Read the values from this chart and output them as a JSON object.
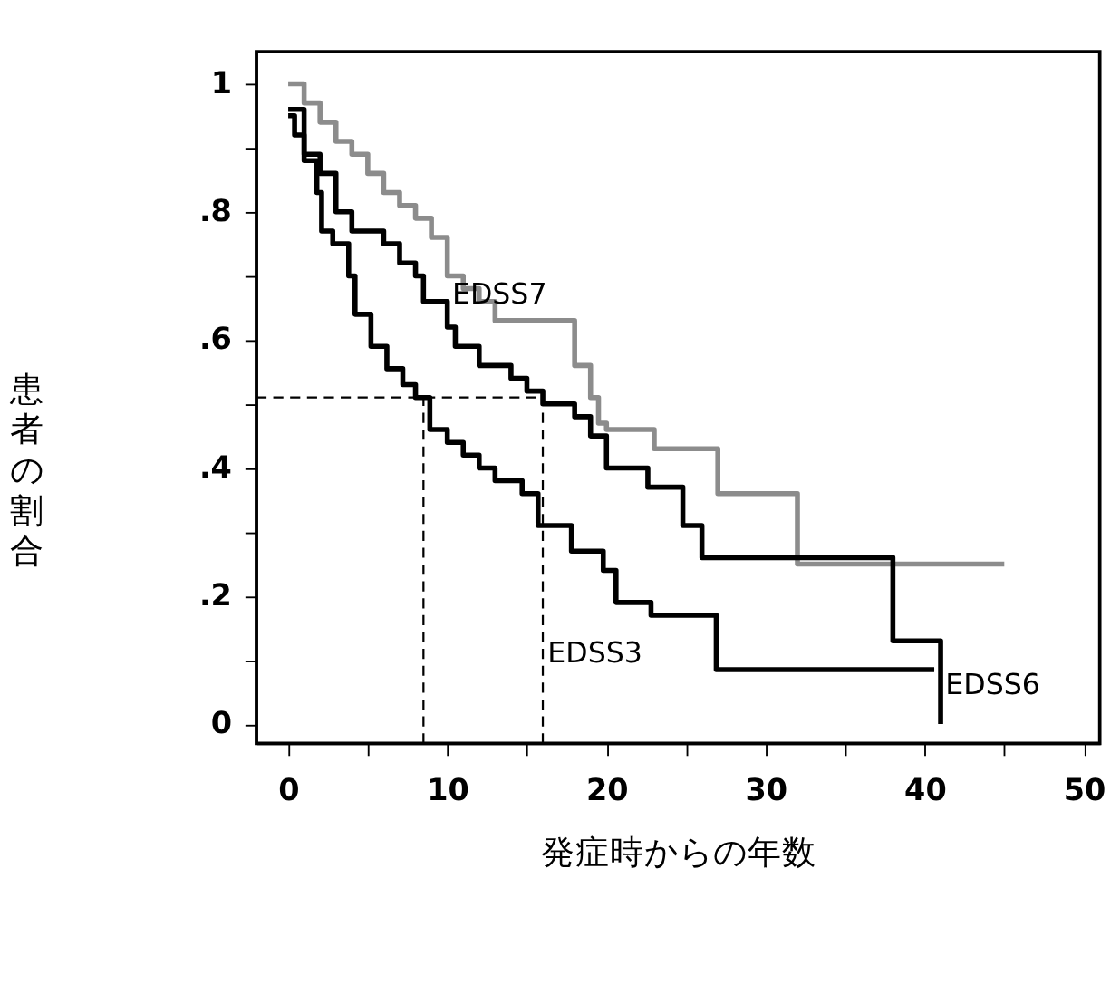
{
  "chart_data": {
    "type": "step",
    "xlabel": "発症時からの年数",
    "ylabel": "患者の割合",
    "xlim": [
      -2,
      51
    ],
    "ylim": [
      -0.03,
      1.05
    ],
    "xticks": [
      0,
      {
        "value": 5,
        "label": null
      },
      10,
      {
        "value": 15,
        "label": null
      },
      20,
      {
        "value": 25,
        "label": null
      },
      30,
      {
        "value": 35,
        "label": null
      },
      40,
      {
        "value": 45,
        "label": null
      },
      50
    ],
    "yticks": [
      0,
      {
        "value": 0.1,
        "label": null
      },
      {
        "value": 0.2,
        "label": ".2"
      },
      {
        "value": 0.3,
        "label": null
      },
      {
        "value": 0.4,
        "label": ".4"
      },
      {
        "value": 0.5,
        "label": null
      },
      {
        "value": 0.6,
        "label": ".6"
      },
      {
        "value": 0.7,
        "label": null
      },
      {
        "value": 0.8,
        "label": ".8"
      },
      {
        "value": 0.9,
        "label": null
      },
      1
    ],
    "grid": false,
    "marker": "none",
    "line_style": "solid",
    "series": [
      {
        "color": "#8c8c8c",
        "x": [
          0,
          1,
          2,
          3,
          4,
          5,
          6,
          7,
          8,
          9,
          10,
          11,
          12,
          13,
          18,
          19,
          19.5,
          20,
          23,
          27,
          32,
          45
        ],
        "values": [
          1.0,
          0.97,
          0.94,
          0.91,
          0.89,
          0.86,
          0.83,
          0.81,
          0.79,
          0.76,
          0.7,
          0.68,
          0.66,
          0.63,
          0.56,
          0.51,
          0.47,
          0.46,
          0.43,
          0.36,
          0.25,
          0.25
        ]
      },
      {
        "color": "#000000",
        "x": [
          0,
          1,
          2,
          3,
          4,
          6,
          7,
          8,
          8.5,
          10,
          10.5,
          12,
          14,
          15,
          16,
          18,
          19,
          20,
          22.6,
          24.8,
          26,
          38,
          41
        ],
        "values": [
          0.96,
          0.89,
          0.86,
          0.8,
          0.77,
          0.75,
          0.72,
          0.7,
          0.66,
          0.62,
          0.59,
          0.56,
          0.54,
          0.52,
          0.5,
          0.48,
          0.45,
          0.4,
          0.37,
          0.31,
          0.26,
          0.13,
          0.0
        ]
      },
      {
        "color": "#000000",
        "x": [
          0,
          0.4,
          1,
          1.8,
          2.1,
          2.8,
          3.8,
          4.2,
          5.2,
          6.2,
          7.2,
          8,
          8.9,
          10,
          11,
          12,
          13,
          14.7,
          15.7,
          17.8,
          19.8,
          20.6,
          22.8,
          26.9,
          40.6
        ],
        "values": [
          0.95,
          0.92,
          0.88,
          0.83,
          0.77,
          0.75,
          0.7,
          0.64,
          0.59,
          0.555,
          0.53,
          0.51,
          0.46,
          0.44,
          0.42,
          0.4,
          0.38,
          0.36,
          0.31,
          0.27,
          0.24,
          0.19,
          0.17,
          0.085,
          0.085
        ]
      }
    ],
    "ref_lines": [
      {
        "axis": "y",
        "value": 0.51,
        "color": "#000000",
        "line_style": "dashed"
      },
      {
        "axis": "x",
        "value": 8.5,
        "color": "#000000",
        "line_style": "dashed"
      },
      {
        "axis": "x",
        "value": 16,
        "color": "#000000",
        "line_style": "dashed"
      }
    ],
    "annotations": [
      {
        "text": "EDSS7",
        "x": 10.3,
        "y": 0.67
      },
      {
        "text": "EDSS3",
        "x": 16.3,
        "y": 0.11
      },
      {
        "text": "EDSS6",
        "x": 41.3,
        "y": 0.06
      }
    ]
  }
}
